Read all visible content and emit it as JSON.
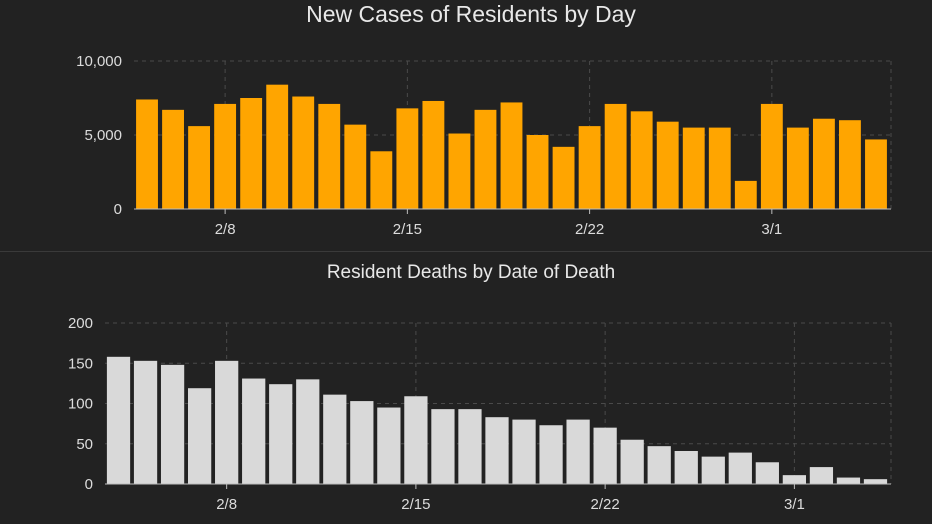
{
  "chart_data": [
    {
      "type": "bar",
      "title": "New Cases of Residents by Day",
      "color": "#FFA500",
      "ylim": [
        0,
        10000
      ],
      "yticks": [
        {
          "value": 0,
          "label": "0"
        },
        {
          "value": 5000,
          "label": "5,000"
        },
        {
          "value": 10000,
          "label": "10,000"
        }
      ],
      "xticks": [
        {
          "index": 3,
          "label": "2/8"
        },
        {
          "index": 10,
          "label": "2/15"
        },
        {
          "index": 17,
          "label": "2/22"
        },
        {
          "index": 24,
          "label": "3/1"
        }
      ],
      "values": [
        7400,
        6700,
        5600,
        7100,
        7500,
        8400,
        7600,
        7100,
        5700,
        3900,
        6800,
        7300,
        5100,
        6700,
        7200,
        5000,
        4200,
        5600,
        7100,
        6600,
        5900,
        5500,
        5500,
        1900,
        7100,
        5500,
        6100,
        6000,
        4700
      ],
      "grid": true
    },
    {
      "type": "bar",
      "title": "Resident Deaths by Date of Death",
      "color": "#D9D9D9",
      "ylim": [
        0,
        200
      ],
      "yticks": [
        {
          "value": 0,
          "label": "0"
        },
        {
          "value": 50,
          "label": "50"
        },
        {
          "value": 100,
          "label": "100"
        },
        {
          "value": 150,
          "label": "150"
        },
        {
          "value": 200,
          "label": "200"
        }
      ],
      "xticks": [
        {
          "index": 4,
          "label": "2/8"
        },
        {
          "index": 11,
          "label": "2/15"
        },
        {
          "index": 18,
          "label": "2/22"
        },
        {
          "index": 25,
          "label": "3/1"
        }
      ],
      "values": [
        158,
        153,
        148,
        119,
        153,
        131,
        124,
        130,
        111,
        103,
        95,
        109,
        93,
        93,
        83,
        80,
        73,
        80,
        70,
        55,
        47,
        41,
        34,
        39,
        27,
        11,
        21,
        8,
        6
      ],
      "grid": true
    }
  ]
}
